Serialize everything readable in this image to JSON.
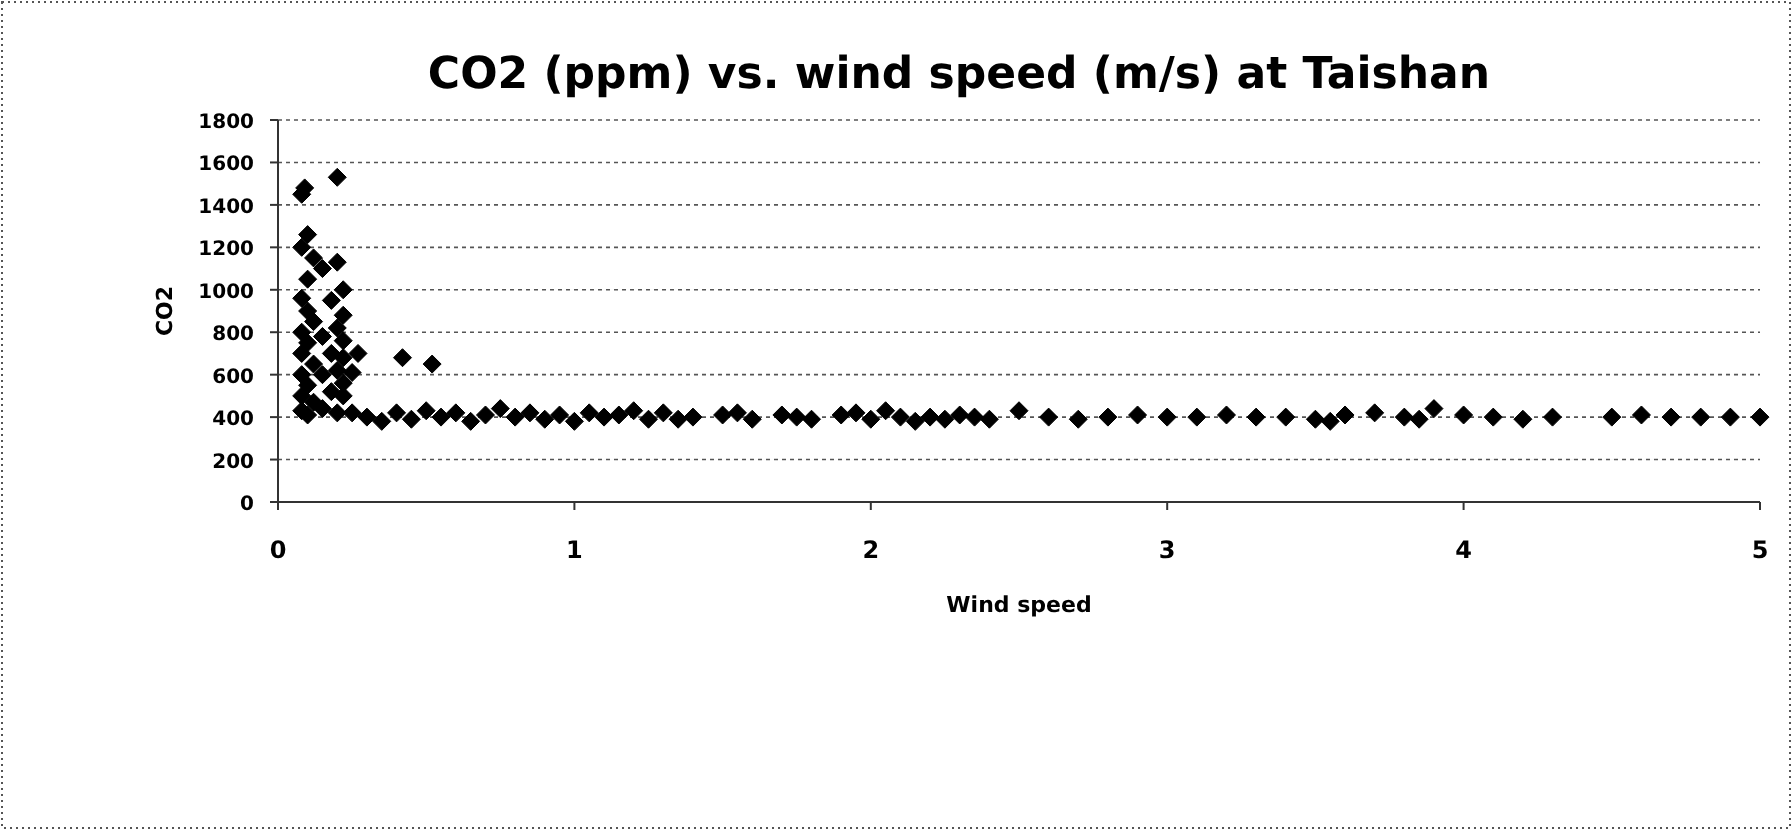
{
  "chart_data": {
    "type": "scatter",
    "title": "CO2 (ppm) vs. wind speed (m/s) at Taishan",
    "xlabel": "Wind speed",
    "ylabel": "CO2",
    "xlim": [
      0,
      5
    ],
    "xticks": [
      0,
      1,
      2,
      3,
      4,
      5
    ],
    "ylim": [
      0,
      1800
    ],
    "yticks": [
      0,
      200,
      400,
      600,
      800,
      1000,
      1200,
      1400,
      1600,
      1800
    ],
    "grid": "y",
    "marker": "diamond",
    "series": [
      {
        "color": "#000000",
        "x": [
          0.08,
          0.09,
          0.2,
          0.1,
          0.08,
          0.12,
          0.15,
          0.1,
          0.2,
          0.22,
          0.08,
          0.1,
          0.12,
          0.18,
          0.22,
          0.08,
          0.1,
          0.15,
          0.2,
          0.22,
          0.08,
          0.12,
          0.18,
          0.22,
          0.08,
          0.1,
          0.15,
          0.2,
          0.22,
          0.08,
          0.12,
          0.18,
          0.22,
          0.08,
          0.1,
          0.15,
          0.2,
          0.25,
          0.27,
          0.42,
          0.52,
          0.25,
          0.3,
          0.35,
          0.4,
          0.45,
          0.5,
          0.55,
          0.6,
          0.65,
          0.7,
          0.75,
          0.8,
          0.85,
          0.9,
          0.95,
          1.0,
          1.05,
          1.1,
          1.15,
          1.2,
          1.25,
          1.3,
          1.35,
          1.4,
          1.5,
          1.55,
          1.6,
          1.7,
          1.75,
          1.8,
          1.9,
          1.95,
          2.0,
          2.05,
          2.1,
          2.15,
          2.2,
          2.25,
          2.3,
          2.35,
          2.4,
          2.5,
          2.6,
          2.7,
          2.8,
          2.9,
          3.0,
          3.1,
          3.2,
          3.3,
          3.4,
          3.5,
          3.55,
          3.6,
          3.7,
          3.8,
          3.85,
          3.9,
          4.0,
          4.1,
          4.2,
          4.3,
          4.5,
          4.6,
          4.7,
          4.8,
          4.9,
          5.0
        ],
        "values": [
          1450,
          1480,
          1530,
          1260,
          1200,
          1150,
          1100,
          1050,
          1130,
          1000,
          960,
          900,
          850,
          950,
          880,
          800,
          750,
          780,
          820,
          760,
          700,
          650,
          700,
          680,
          600,
          550,
          600,
          620,
          560,
          500,
          470,
          520,
          500,
          430,
          410,
          440,
          420,
          610,
          700,
          680,
          650,
          420,
          400,
          380,
          420,
          390,
          430,
          400,
          420,
          380,
          410,
          440,
          400,
          420,
          390,
          410,
          380,
          420,
          400,
          410,
          430,
          390,
          420,
          390,
          400,
          410,
          420,
          390,
          410,
          400,
          390,
          410,
          420,
          390,
          430,
          400,
          380,
          400,
          390,
          410,
          400,
          390,
          430,
          400,
          390,
          400,
          410,
          400,
          400,
          410,
          400,
          400,
          390,
          380,
          410,
          420,
          400,
          390,
          440,
          410,
          400,
          390,
          400,
          400,
          410,
          400,
          400,
          400,
          400
        ]
      }
    ]
  }
}
